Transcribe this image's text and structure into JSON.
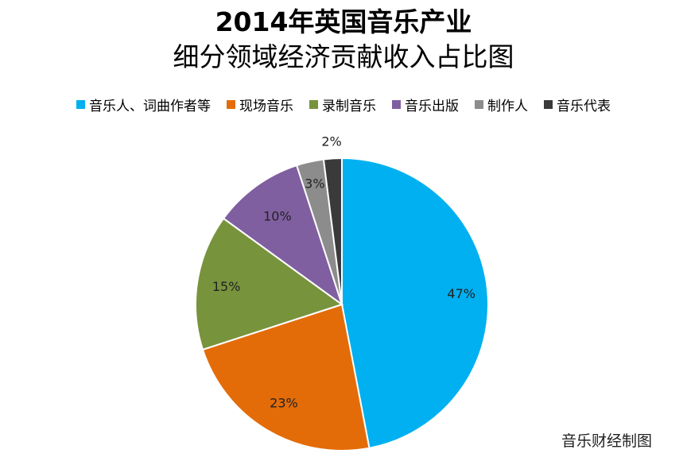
{
  "title_line1": "2014年英国音乐产业",
  "title_line2": "细分领域经济贡献收入占比图",
  "credit": "音乐财经制图",
  "chart_data": {
    "type": "pie",
    "categories": [
      "音乐人、词曲作者等",
      "现场音乐",
      "录制音乐",
      "音乐出版",
      "制作人",
      "音乐代表"
    ],
    "values": [
      47,
      23,
      15,
      10,
      3,
      2
    ],
    "labels": [
      "47%",
      "23%",
      "15%",
      "10%",
      "3%",
      "2%"
    ],
    "colors": [
      "#00B0F0",
      "#E36C09",
      "#77933C",
      "#7F5FA0",
      "#8C8C8C",
      "#3A3A3A"
    ],
    "legend_position": "top",
    "start": "12 o'clock",
    "direction": "clockwise"
  }
}
